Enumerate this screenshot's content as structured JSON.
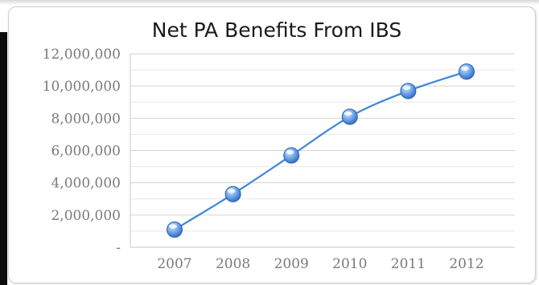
{
  "chart_data": {
    "type": "line",
    "title": "Net PA Benefits From IBS",
    "xlabel": "",
    "ylabel": "",
    "categories": [
      "2007",
      "2008",
      "2009",
      "2010",
      "2011",
      "2012"
    ],
    "series": [
      {
        "values": [
          1100000,
          3300000,
          5700000,
          8100000,
          9700000,
          10900000
        ]
      }
    ],
    "ylim": [
      0,
      12000000
    ],
    "yticks": [
      0,
      2000000,
      4000000,
      6000000,
      8000000,
      10000000,
      12000000
    ],
    "ytick_labels": [
      "-",
      "2,000,000",
      "4,000,000",
      "6,000,000",
      "8,000,000",
      "10,000,000",
      "12,000,000"
    ],
    "grid": true,
    "line_color": "#3d86d8",
    "marker_color": "#4a8ee6"
  }
}
